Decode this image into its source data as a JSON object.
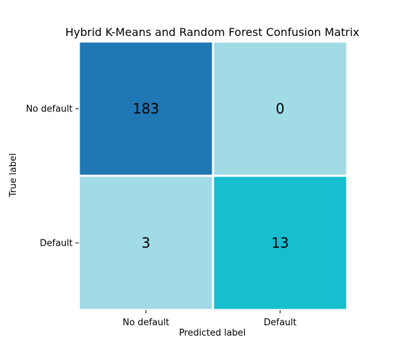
{
  "chart_data": {
    "type": "heatmap",
    "title": "Hybrid K-Means and Random Forest Confusion Matrix",
    "xlabel": "Predicted label",
    "ylabel": "True label",
    "x_categories": [
      "No default",
      "Default"
    ],
    "y_categories": [
      "No default",
      "Default"
    ],
    "values": [
      [
        183,
        0
      ],
      [
        3,
        13
      ]
    ],
    "colors": [
      "#1f77b4",
      "#17becf",
      "#a0dbe6"
    ],
    "grid": false,
    "legend": "none"
  }
}
